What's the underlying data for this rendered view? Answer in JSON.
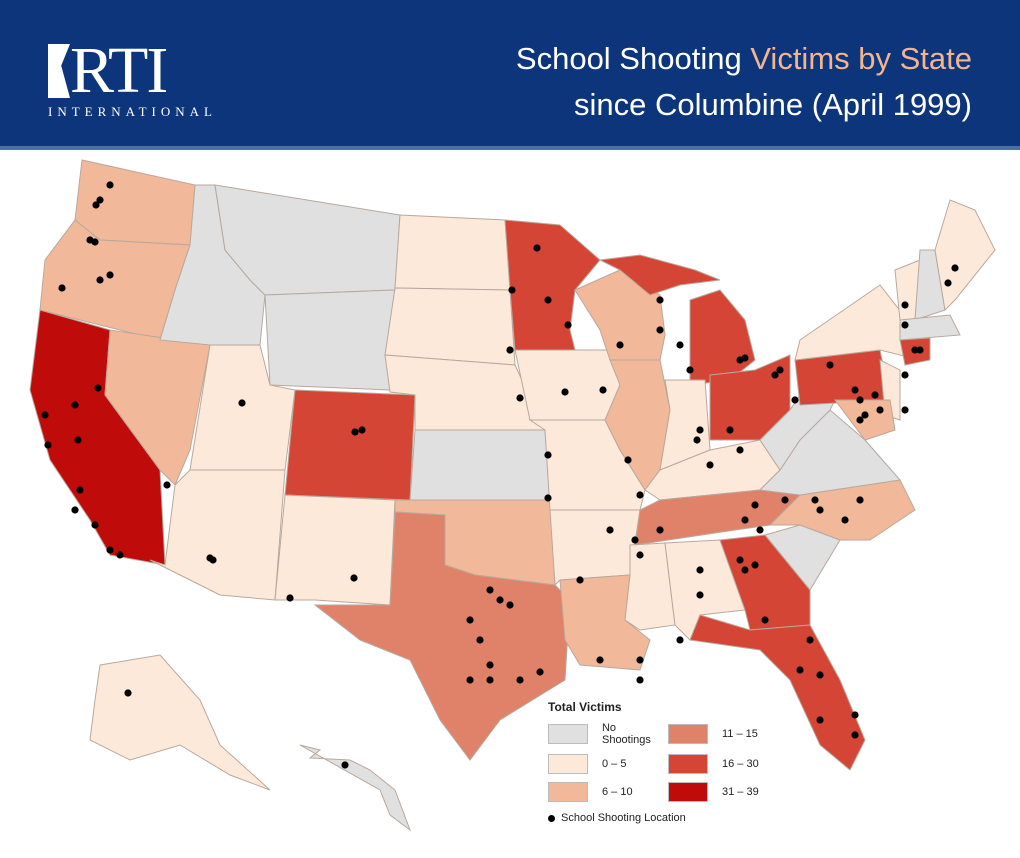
{
  "header": {
    "logo_text": "RTI",
    "logo_subtext": "INTERNATIONAL",
    "title_part1": "School Shooting ",
    "title_highlight": "Victims by State",
    "title_line2": "since Columbine (April 1999)"
  },
  "colors": {
    "header_bg": "#0c357b",
    "highlight": "#f2b58f",
    "dot": "#000000"
  },
  "legend": {
    "title": "Total Victims",
    "categories": [
      {
        "key": "none",
        "label": "No Shootings",
        "color": "#e0e0e0"
      },
      {
        "key": "c11",
        "label": "11 – 15",
        "color": "#e0826a"
      },
      {
        "key": "c0",
        "label": "0 – 5",
        "color": "#fde9d9"
      },
      {
        "key": "c16",
        "label": "16 – 30",
        "color": "#d44535"
      },
      {
        "key": "c6",
        "label": "6 – 10",
        "color": "#f1b99a"
      },
      {
        "key": "c31",
        "label": "31 – 39",
        "color": "#c00b0b"
      }
    ],
    "dot_label": "School Shooting Location"
  },
  "states": {
    "WA": "c6",
    "OR": "c6",
    "CA": "c31",
    "NV": "c6",
    "ID": "none",
    "MT": "none",
    "WY": "none",
    "UT": "c0",
    "AZ": "c0",
    "CO": "c16",
    "NM": "c0",
    "ND": "c0",
    "SD": "c0",
    "NE": "c0",
    "KS": "none",
    "OK": "c6",
    "TX": "c11",
    "MN": "c16",
    "IA": "c0",
    "MO": "c0",
    "AR": "c0",
    "LA": "c6",
    "WI": "c6",
    "IL": "c6",
    "MI": "c16",
    "MIU": "c16",
    "IN": "c0",
    "OH": "c16",
    "KY": "c0",
    "TN": "c11",
    "MS": "c0",
    "AL": "c0",
    "GA": "c16",
    "FL": "c16",
    "SC": "none",
    "NC": "c6",
    "VA": "none",
    "WV": "none",
    "PA": "c16",
    "NY": "c0",
    "NJ": "c0",
    "MD": "c6",
    "VT": "c0",
    "NH": "none",
    "ME": "c0",
    "MA": "none",
    "CT": "c16",
    "AK": "c0",
    "HI": "none"
  }
}
